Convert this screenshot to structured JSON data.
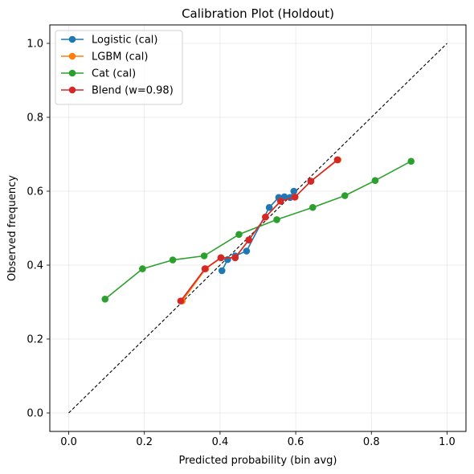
{
  "chart_data": {
    "type": "line",
    "title": "Calibration Plot (Holdout)",
    "xlabel": "Predicted probability (bin avg)",
    "ylabel": "Observed frequency",
    "xlim": [
      -0.05,
      1.05
    ],
    "ylim": [
      -0.05,
      1.05
    ],
    "xticks": [
      "0.0",
      "0.2",
      "0.4",
      "0.6",
      "0.8",
      "1.0"
    ],
    "yticks": [
      "0.0",
      "0.2",
      "0.4",
      "0.6",
      "0.8",
      "1.0"
    ],
    "grid": true,
    "legend_position": "upper-left",
    "reference_line": {
      "style": "dashed",
      "color": "#000000",
      "x": [
        0,
        1
      ],
      "y": [
        0,
        1
      ]
    },
    "series": [
      {
        "name": "Logistic (cal)",
        "color": "#1f77b4",
        "x": [
          0.405,
          0.42,
          0.44,
          0.47,
          0.53,
          0.555,
          0.57,
          0.585,
          0.595
        ],
        "y": [
          0.385,
          0.415,
          0.425,
          0.438,
          0.556,
          0.583,
          0.585,
          0.583,
          0.6
        ]
      },
      {
        "name": "LGBM (cal)",
        "color": "#ff7f0e",
        "x": [
          0.3,
          0.362,
          0.403,
          0.44,
          0.476,
          0.52,
          0.56,
          0.598,
          0.64,
          0.712
        ],
        "y": [
          0.303,
          0.39,
          0.42,
          0.42,
          0.468,
          0.53,
          0.573,
          0.584,
          0.627,
          0.685
        ]
      },
      {
        "name": "Cat (cal)",
        "color": "#2ca02c",
        "x": [
          0.096,
          0.195,
          0.275,
          0.358,
          0.45,
          0.55,
          0.645,
          0.73,
          0.81,
          0.905
        ],
        "y": [
          0.308,
          0.39,
          0.414,
          0.425,
          0.483,
          0.523,
          0.556,
          0.588,
          0.629,
          0.681
        ]
      },
      {
        "name": "Blend (w=0.98)",
        "color": "#d62728",
        "x": [
          0.296,
          0.36,
          0.402,
          0.44,
          0.476,
          0.52,
          0.56,
          0.598,
          0.64,
          0.71
        ],
        "y": [
          0.303,
          0.39,
          0.42,
          0.42,
          0.468,
          0.53,
          0.573,
          0.584,
          0.627,
          0.685
        ]
      }
    ]
  }
}
